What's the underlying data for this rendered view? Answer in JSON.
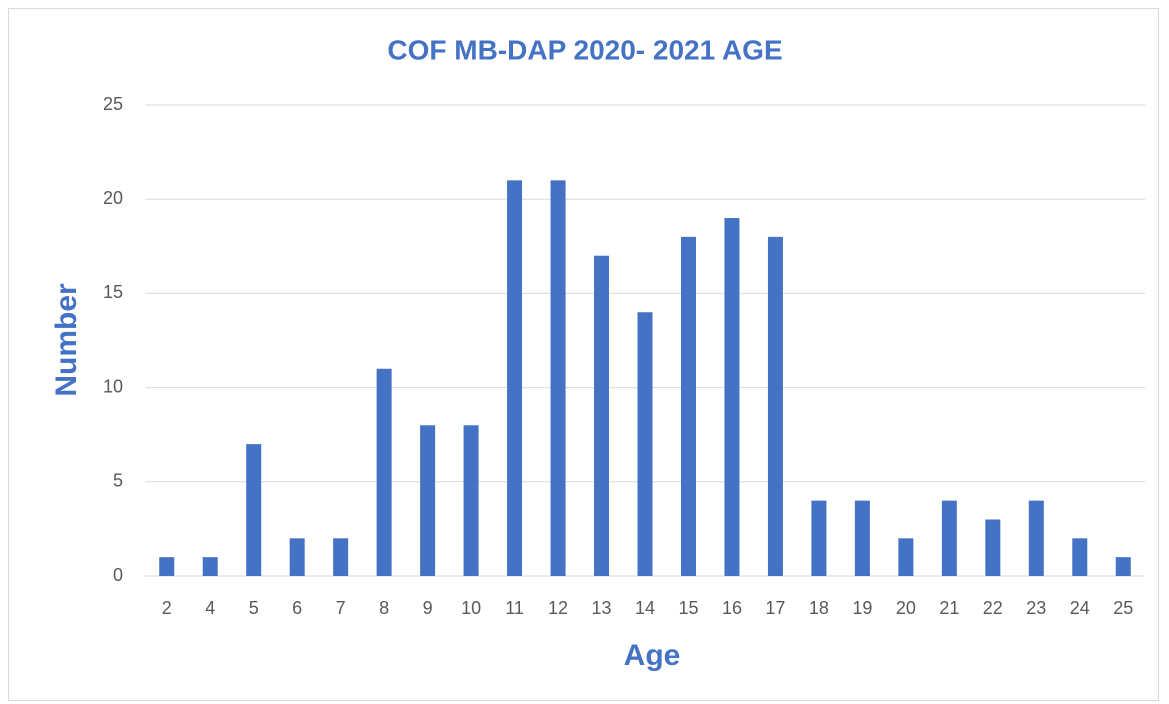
{
  "chart_data": {
    "type": "bar",
    "title": "COF MB-DAP 2020- 2021 AGE",
    "x_label": "Age",
    "y_label": "Number",
    "categories": [
      "2",
      "4",
      "5",
      "6",
      "7",
      "8",
      "9",
      "10",
      "11",
      "12",
      "13",
      "14",
      "15",
      "16",
      "17",
      "18",
      "19",
      "20",
      "21",
      "22",
      "23",
      "24",
      "25"
    ],
    "values": [
      1,
      1,
      7,
      2,
      2,
      11,
      8,
      8,
      21,
      21,
      17,
      14,
      18,
      19,
      18,
      4,
      4,
      2,
      4,
      3,
      4,
      2,
      1
    ],
    "color": "#4472c4",
    "ylim": [
      0,
      25
    ],
    "yticks": [
      0,
      5,
      10,
      15,
      20,
      25
    ],
    "grid": true
  }
}
